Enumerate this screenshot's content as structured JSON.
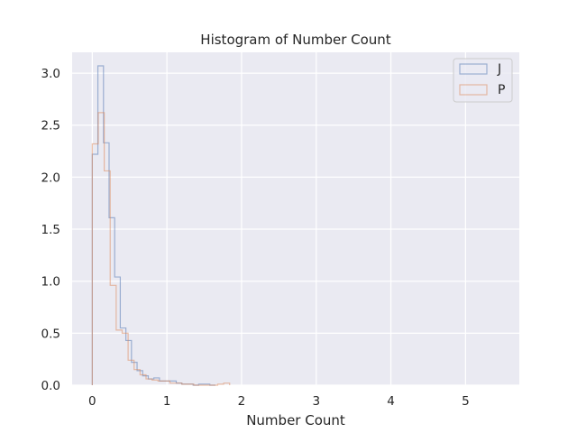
{
  "colors": {
    "background": "#eaeaf2",
    "grid": "#ffffff",
    "series_j": "#4c72b0",
    "series_p": "#dd8452"
  },
  "chart_data": {
    "type": "histogram",
    "title": "Histogram of Number Count",
    "xlabel": "Number Count",
    "ylabel": "",
    "xlim": [
      -0.27,
      5.72
    ],
    "ylim": [
      0,
      3.2
    ],
    "xticks": [
      0,
      1,
      2,
      3,
      4,
      5
    ],
    "xtick_labels": [
      "0",
      "1",
      "2",
      "3",
      "4",
      "5"
    ],
    "yticks": [
      0.0,
      0.5,
      1.0,
      1.5,
      2.0,
      2.5,
      3.0
    ],
    "ytick_labels": [
      "0.0",
      "0.5",
      "1.0",
      "1.5",
      "2.0",
      "2.5",
      "3.0"
    ],
    "grid": true,
    "legend_position": "top-right",
    "histtype": "step",
    "series": [
      {
        "name": "J",
        "color": "#4c72b0",
        "bin_edges": [
          0.0,
          0.075,
          0.15,
          0.225,
          0.3,
          0.375,
          0.45,
          0.525,
          0.6,
          0.675,
          0.75,
          0.825,
          0.9,
          0.975,
          1.05,
          1.125,
          1.2,
          1.275,
          1.35,
          1.425,
          1.5,
          1.575,
          1.65
        ],
        "values": [
          2.22,
          3.07,
          2.33,
          1.61,
          1.04,
          0.55,
          0.43,
          0.22,
          0.14,
          0.09,
          0.06,
          0.07,
          0.04,
          0.04,
          0.04,
          0.02,
          0.01,
          0.01,
          0.0,
          0.01,
          0.01,
          0.0
        ]
      },
      {
        "name": "P",
        "color": "#dd8452",
        "bin_edges": [
          0.0,
          0.08,
          0.16,
          0.24,
          0.32,
          0.4,
          0.48,
          0.56,
          0.64,
          0.72,
          0.8,
          0.88,
          0.96,
          1.04,
          1.12,
          1.2,
          1.28,
          1.36,
          1.44,
          1.52,
          1.6,
          1.68,
          1.76,
          1.84
        ],
        "values": [
          2.32,
          2.62,
          2.06,
          0.96,
          0.53,
          0.5,
          0.24,
          0.15,
          0.1,
          0.06,
          0.05,
          0.04,
          0.04,
          0.02,
          0.02,
          0.01,
          0.01,
          0.0,
          0.0,
          0.0,
          0.0,
          0.01,
          0.02
        ]
      }
    ]
  }
}
